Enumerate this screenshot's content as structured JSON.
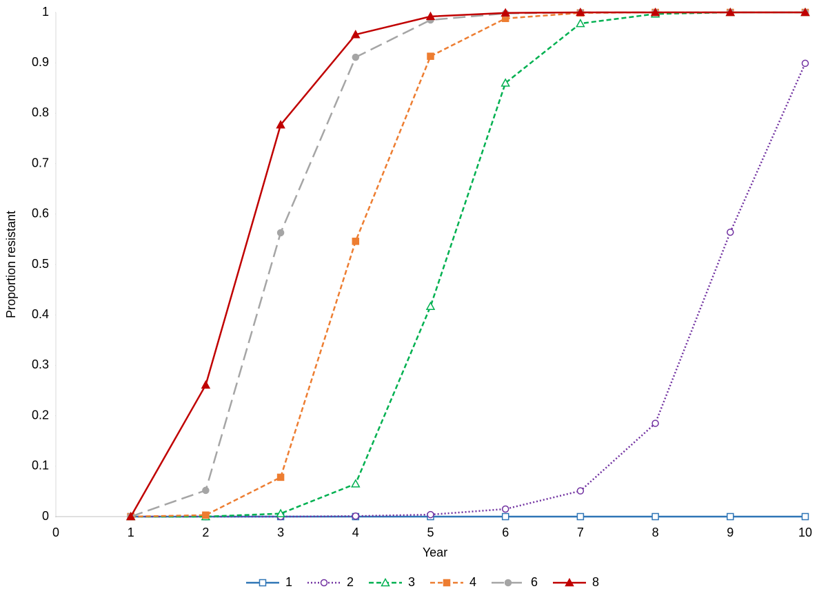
{
  "chart_data": {
    "type": "line",
    "x_label": "Year",
    "y_label": "Proportion resistant",
    "x": [
      1,
      2,
      3,
      4,
      5,
      6,
      7,
      8,
      9,
      10
    ],
    "xlim": [
      0,
      10
    ],
    "xticks": [
      0,
      1,
      2,
      3,
      4,
      5,
      6,
      7,
      8,
      9,
      10
    ],
    "ylim": [
      0,
      1
    ],
    "yticks": [
      0,
      0.1,
      0.2,
      0.3,
      0.4,
      0.5,
      0.6,
      0.7,
      0.8,
      0.9,
      1
    ],
    "legend": "bottom",
    "series": [
      {
        "name": "1",
        "color": "#2e75b6",
        "marker": "square",
        "marker_filled": false,
        "line_style": "solid",
        "values": [
          0,
          0,
          0,
          0,
          0,
          0,
          0,
          0,
          0,
          0
        ]
      },
      {
        "name": "2",
        "color": "#7030a0",
        "marker": "circle",
        "marker_filled": false,
        "line_style": "dotted",
        "values": [
          0,
          0,
          0,
          0.001,
          0.004,
          0.015,
          0.051,
          0.185,
          0.564,
          0.899
        ]
      },
      {
        "name": "3",
        "color": "#00b050",
        "marker": "triangle",
        "marker_filled": false,
        "line_style": "dashed",
        "values": [
          0,
          0,
          0.006,
          0.065,
          0.417,
          0.86,
          0.978,
          0.997,
          1,
          1
        ]
      },
      {
        "name": "4",
        "color": "#ed7d31",
        "marker": "square",
        "marker_filled": true,
        "line_style": "dashed",
        "values": [
          0,
          0.003,
          0.078,
          0.546,
          0.913,
          0.988,
          0.999,
          1,
          1,
          1
        ]
      },
      {
        "name": "6",
        "color": "#a5a5a5",
        "marker": "circle",
        "marker_filled": true,
        "line_style": "long-dashed",
        "values": [
          0,
          0.052,
          0.563,
          0.911,
          0.985,
          0.998,
          1,
          1,
          1,
          1
        ]
      },
      {
        "name": "8",
        "color": "#c00000",
        "marker": "triangle",
        "marker_filled": true,
        "line_style": "solid",
        "values": [
          0,
          0.261,
          0.777,
          0.956,
          0.992,
          0.999,
          1,
          1,
          1,
          1
        ]
      }
    ]
  }
}
